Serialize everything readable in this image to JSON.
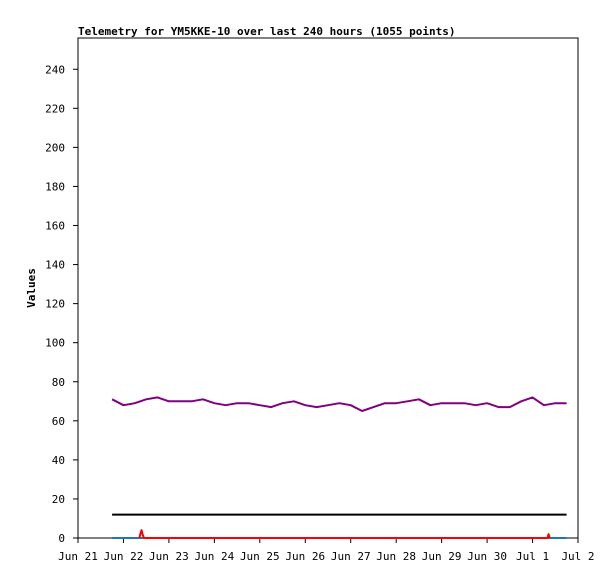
{
  "chart_data": {
    "type": "line",
    "title": "Telemetry for YM5KKE-10 over last 240 hours (1055 points)",
    "xlabel": "",
    "ylabel": "Values",
    "ylim": [
      0,
      256
    ],
    "yticks": [
      0,
      20,
      40,
      60,
      80,
      100,
      120,
      140,
      160,
      180,
      200,
      220,
      240
    ],
    "xlim": [
      "Jun 21",
      "Jul 2"
    ],
    "xticks": [
      "Jun 21",
      "Jun 22",
      "Jun 23",
      "Jun 24",
      "Jun 25",
      "Jun 26",
      "Jun 27",
      "Jun 28",
      "Jun 29",
      "Jun 30",
      "Jul 1",
      "Jul 2"
    ],
    "grid": false,
    "legend": "none",
    "series": [
      {
        "color": "#800080",
        "x": [
          0.75,
          1.0,
          1.25,
          1.5,
          1.75,
          2.0,
          2.25,
          2.5,
          2.75,
          3.0,
          3.25,
          3.5,
          3.75,
          4.0,
          4.25,
          4.5,
          4.75,
          5.0,
          5.25,
          5.5,
          5.75,
          6.0,
          6.25,
          6.5,
          6.75,
          7.0,
          7.25,
          7.5,
          7.75,
          8.0,
          8.25,
          8.5,
          8.75,
          9.0,
          9.25,
          9.5,
          9.75,
          10.0,
          10.25,
          10.5,
          10.75
        ],
        "values": [
          71,
          68,
          69,
          71,
          72,
          70,
          70,
          70,
          71,
          69,
          68,
          69,
          69,
          68,
          67,
          69,
          70,
          68,
          67,
          68,
          69,
          68,
          65,
          67,
          69,
          69,
          70,
          71,
          68,
          69,
          69,
          69,
          68,
          69,
          67,
          67,
          70,
          72,
          68,
          69,
          69
        ]
      },
      {
        "color": "#000000",
        "x": [
          0.75,
          10.75
        ],
        "values": [
          12,
          12
        ]
      },
      {
        "color": "#1f77b4",
        "x": [
          0.75,
          10.75
        ],
        "values": [
          0,
          0
        ]
      },
      {
        "color": "#ff0000",
        "x": [
          1.35,
          1.37,
          1.4,
          1.42,
          1.45,
          10.33,
          10.35,
          10.38
        ],
        "values": [
          0,
          2,
          4,
          2,
          0,
          0,
          2,
          0
        ]
      }
    ]
  }
}
